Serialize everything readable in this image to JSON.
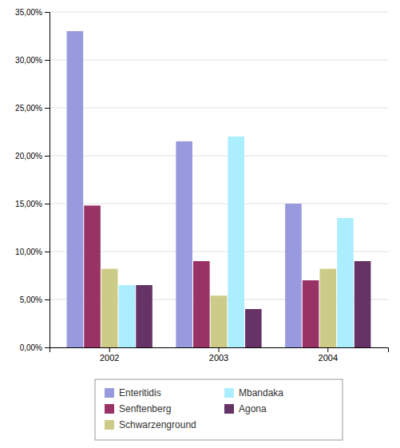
{
  "chart_data": {
    "type": "bar",
    "categories": [
      "2002",
      "2003",
      "2004"
    ],
    "series": [
      {
        "name": "Enteritidis",
        "color": "#9999dd",
        "values": [
          0.33,
          0.215,
          0.15
        ]
      },
      {
        "name": "Senftenberg",
        "color": "#993366",
        "values": [
          0.148,
          0.09,
          0.07
        ]
      },
      {
        "name": "Schwarzenground",
        "color": "#cccc88",
        "values": [
          0.082,
          0.054,
          0.082
        ]
      },
      {
        "name": "Mbandaka",
        "color": "#aaeeff",
        "values": [
          0.065,
          0.22,
          0.135
        ]
      },
      {
        "name": "Agona",
        "color": "#663366",
        "values": [
          0.065,
          0.04,
          0.09
        ]
      }
    ],
    "ylim": [
      0,
      0.35
    ],
    "yticks": [
      {
        "value": 0,
        "label": "0,00%"
      },
      {
        "value": 0.05,
        "label": "5,00%"
      },
      {
        "value": 0.1,
        "label": "10,00%"
      },
      {
        "value": 0.15,
        "label": "15,00%"
      },
      {
        "value": 0.2,
        "label": "20,00%"
      },
      {
        "value": 0.25,
        "label": "25,00%"
      },
      {
        "value": 0.3,
        "label": "30,00%"
      },
      {
        "value": 0.35,
        "label": "35,00%"
      }
    ],
    "grid": true,
    "legend": "bottom"
  }
}
